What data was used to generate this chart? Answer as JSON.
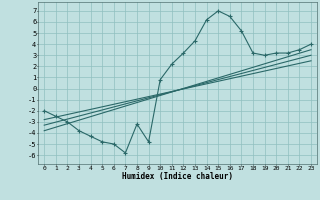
{
  "xlabel": "Humidex (Indice chaleur)",
  "bg_color": "#c0e0e0",
  "grid_color": "#90c0c0",
  "line_color": "#2a6868",
  "xlim": [
    -0.5,
    23.5
  ],
  "ylim": [
    -6.8,
    7.8
  ],
  "xticks": [
    0,
    1,
    2,
    3,
    4,
    5,
    6,
    7,
    8,
    9,
    10,
    11,
    12,
    13,
    14,
    15,
    16,
    17,
    18,
    19,
    20,
    21,
    22,
    23
  ],
  "yticks": [
    -6,
    -5,
    -4,
    -3,
    -2,
    -1,
    0,
    1,
    2,
    3,
    4,
    5,
    6,
    7
  ],
  "data_x": [
    0,
    1,
    2,
    3,
    4,
    5,
    6,
    7,
    8,
    9,
    10,
    11,
    12,
    13,
    14,
    15,
    16,
    17,
    18,
    19,
    20,
    21,
    22,
    23
  ],
  "data_y": [
    -2.0,
    -2.5,
    -3.0,
    -3.8,
    -4.3,
    -4.8,
    -5.0,
    -5.8,
    -3.2,
    -4.8,
    0.8,
    2.2,
    3.2,
    4.3,
    6.2,
    7.0,
    6.5,
    5.2,
    3.2,
    3.0,
    3.2,
    3.2,
    3.5,
    4.0
  ],
  "line1_x": [
    0,
    23
  ],
  "line1_y": [
    -3.8,
    3.5
  ],
  "line2_x": [
    0,
    23
  ],
  "line2_y": [
    -3.3,
    3.0
  ],
  "line3_x": [
    0,
    23
  ],
  "line3_y": [
    -2.8,
    2.5
  ]
}
